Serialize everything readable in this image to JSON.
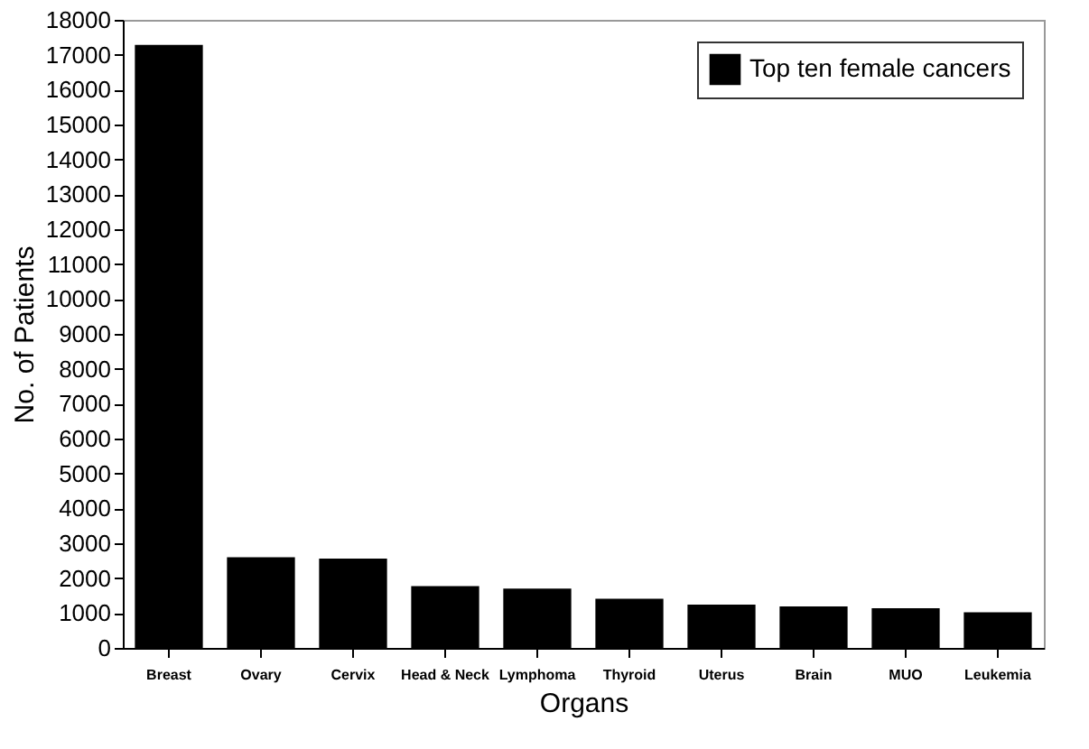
{
  "chart_data": {
    "type": "bar",
    "xlabel": "Organs",
    "ylabel": "No. of Patients",
    "categories": [
      "Breast",
      "Ovary",
      "Cervix",
      "Head & Neck",
      "Lymphoma",
      "Thyroid",
      "Uterus",
      "Brain",
      "MUO",
      "Leukemia"
    ],
    "series": [
      {
        "name": "Top ten female cancers",
        "color": "#000000",
        "values": [
          17280,
          2600,
          2560,
          1770,
          1700,
          1410,
          1240,
          1190,
          1140,
          1020
        ]
      }
    ],
    "ylim": [
      0,
      18000
    ],
    "yticks": [
      0,
      1000,
      2000,
      3000,
      4000,
      5000,
      6000,
      7000,
      8000,
      9000,
      10000,
      11000,
      12000,
      13000,
      14000,
      15000,
      16000,
      17000,
      18000
    ],
    "grid": false,
    "legend": "top right"
  }
}
